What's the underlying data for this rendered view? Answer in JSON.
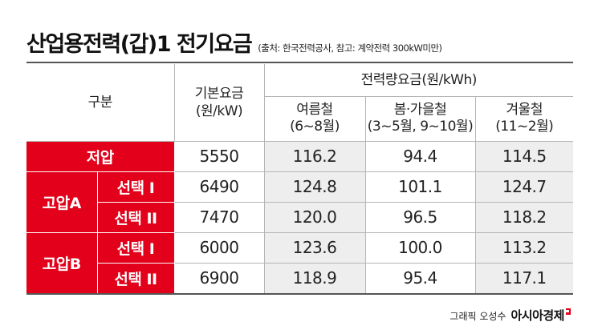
{
  "title": "산업용전력(갑)1 전기요금",
  "source_note": "(출처: 한국전력공사, 참고: 계약전력 300kW미만)",
  "header": {
    "category": "구분",
    "base_fee_line1": "기본요금",
    "base_fee_line2": "(원/kW)",
    "energy_fee": "전력량요금(원/kWh)",
    "summer_line1": "여름철",
    "summer_line2": "(6~8월)",
    "spring_fall_line1": "봄·가을철",
    "spring_fall_line2": "(3~5월, 9~10월)",
    "winter_line1": "겨울철",
    "winter_line2": "(11~2월)"
  },
  "rows": {
    "low": {
      "label": "저압",
      "base": "5550",
      "summer": "116.2",
      "spring_fall": "94.4",
      "winter": "114.5"
    },
    "high_a": {
      "label": "고압A",
      "opt1": {
        "label": "선택 I",
        "base": "6490",
        "summer": "124.8",
        "spring_fall": "101.1",
        "winter": "124.7"
      },
      "opt2": {
        "label": "선택 II",
        "base": "7470",
        "summer": "120.0",
        "spring_fall": "96.5",
        "winter": "118.2"
      }
    },
    "high_b": {
      "label": "고압B",
      "opt1": {
        "label": "선택 I",
        "base": "6000",
        "summer": "123.6",
        "spring_fall": "100.0",
        "winter": "113.2"
      },
      "opt2": {
        "label": "선택 II",
        "base": "6900",
        "summer": "118.9",
        "spring_fall": "95.4",
        "winter": "117.1"
      }
    }
  },
  "footer": {
    "credit": "그래픽 오성수",
    "brand": "아시아경제"
  },
  "colors": {
    "accent": "#e2001a",
    "shade": "#eeeeee"
  }
}
